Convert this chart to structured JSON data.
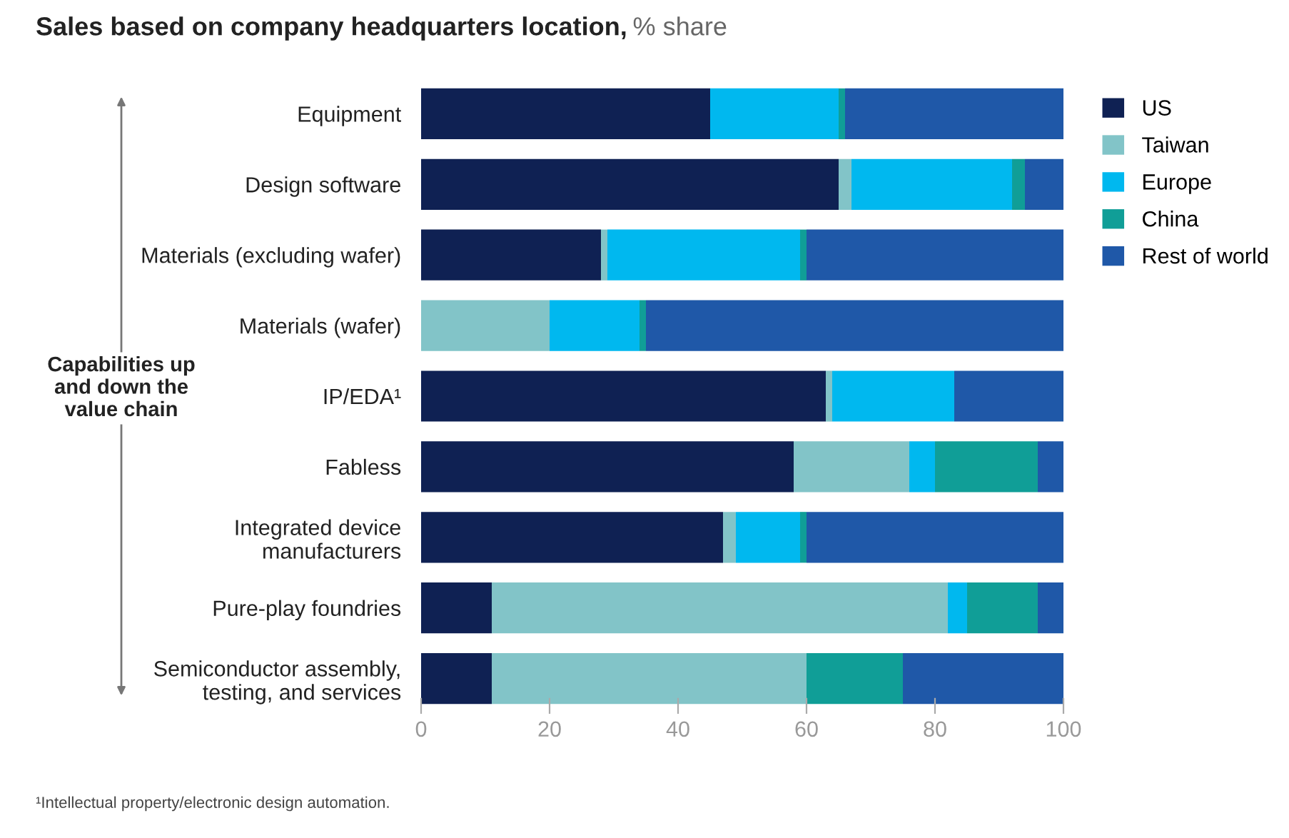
{
  "chart_data": {
    "type": "bar",
    "orientation": "horizontal",
    "stacked": true,
    "title": "Sales based on company headquarters location,",
    "subtitle": "% share",
    "categories": [
      "Equipment",
      "Design software",
      "Materials (excluding wafer)",
      "Materials (wafer)",
      "IP/EDA¹",
      "Fabless",
      "Integrated device\nmanufacturers",
      "Pure-play foundries",
      "Semiconductor assembly,\ntesting, and services"
    ],
    "series": [
      {
        "name": "US",
        "color": "#0f2153",
        "values": [
          45,
          65,
          28,
          0,
          63,
          58,
          47,
          11,
          11
        ]
      },
      {
        "name": "Taiwan",
        "color": "#82c4c8",
        "values": [
          0,
          2,
          1,
          20,
          1,
          18,
          2,
          71,
          49
        ]
      },
      {
        "name": "Europe",
        "color": "#00b8ef",
        "values": [
          20,
          25,
          30,
          14,
          19,
          4,
          10,
          3,
          0
        ]
      },
      {
        "name": "China",
        "color": "#109e97",
        "values": [
          1,
          2,
          1,
          1,
          0,
          16,
          1,
          11,
          15
        ]
      },
      {
        "name": "Rest of world",
        "color": "#1f58a8",
        "values": [
          34,
          6,
          40,
          65,
          17,
          4,
          40,
          4,
          25
        ]
      }
    ],
    "xlim": [
      0,
      100
    ],
    "xticks": [
      0,
      20,
      40,
      60,
      80,
      100
    ],
    "grid": false,
    "legend": "top right",
    "annotations": [
      "Capabilities up\nand down the\nvalue chain",
      "¹Intellectual property/electronic design automation."
    ]
  }
}
